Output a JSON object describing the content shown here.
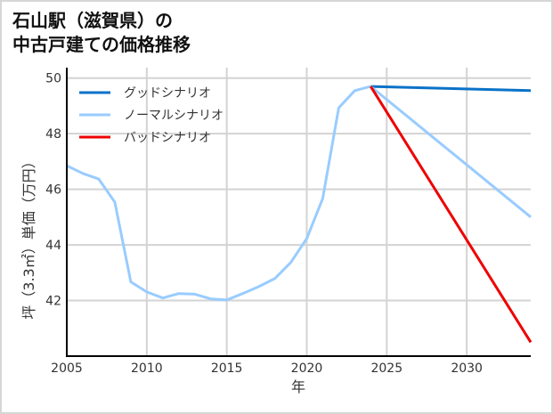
{
  "title_lines": [
    "石山駅（滋賀県）の",
    "中古戸建ての価格推移"
  ],
  "chart_data": {
    "type": "line",
    "title": "石山駅（滋賀県）の中古戸建ての価格推移",
    "xlabel": "年",
    "ylabel": "坪（3.3㎡）単価（万円）",
    "xlim": [
      2005,
      2034
    ],
    "ylim": [
      40,
      50
    ],
    "xticks": [
      2005,
      2010,
      2015,
      2020,
      2025,
      2030
    ],
    "yticks": [
      42,
      44,
      46,
      48,
      50
    ],
    "grid": true,
    "legend_position": "upper left",
    "series": [
      {
        "name": "グッドシナリオ",
        "color": "#0a72c8",
        "x": [
          2024,
          2034
        ],
        "values": [
          49.7,
          49.55
        ]
      },
      {
        "name": "ノーマルシナリオ",
        "color": "#99ccff",
        "x": [
          2005,
          2006,
          2007,
          2008,
          2009,
          2010,
          2011,
          2012,
          2013,
          2014,
          2015,
          2016,
          2017,
          2018,
          2019,
          2020,
          2021,
          2022,
          2023,
          2024,
          2034
        ],
        "values": [
          46.85,
          46.57,
          46.37,
          45.54,
          42.67,
          42.31,
          42.09,
          42.25,
          42.23,
          42.06,
          42.02,
          42.25,
          42.5,
          42.79,
          43.37,
          44.23,
          45.67,
          48.93,
          49.55,
          49.7,
          45.0
        ]
      },
      {
        "name": "バッドシナリオ",
        "color": "#ee0000",
        "x": [
          2024,
          2034
        ],
        "values": [
          49.7,
          40.5
        ]
      }
    ]
  },
  "axis": {
    "xlabel": "年",
    "ylabel": "坪（3.3㎡）単価（万円）",
    "xtick_labels": [
      "2005",
      "2010",
      "2015",
      "2020",
      "2025",
      "2030"
    ],
    "ytick_labels": [
      "42",
      "44",
      "46",
      "48",
      "50"
    ]
  },
  "legend": [
    {
      "label": "グッドシナリオ",
      "color": "#0a72c8"
    },
    {
      "label": "ノーマルシナリオ",
      "color": "#99ccff"
    },
    {
      "label": "バッドシナリオ",
      "color": "#ee0000"
    }
  ]
}
